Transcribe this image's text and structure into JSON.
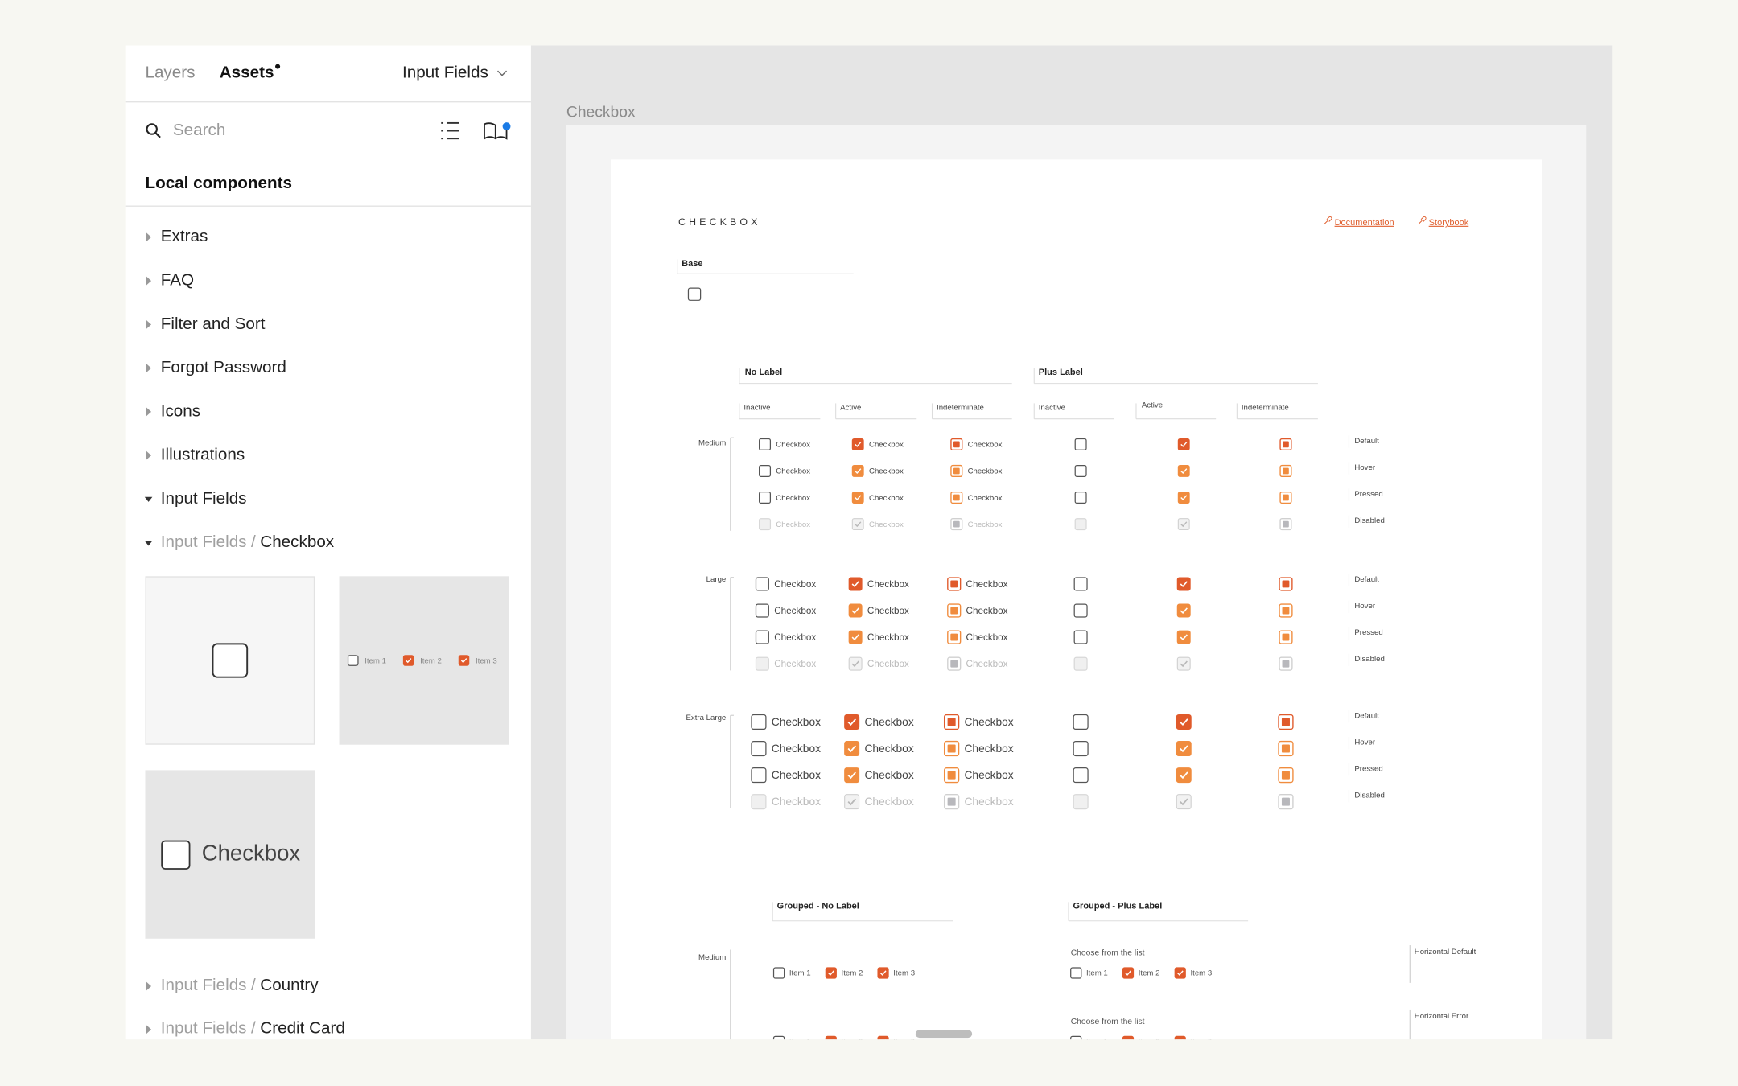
{
  "panel": {
    "tabs": [
      "Layers",
      "Assets"
    ],
    "dropdown": "Input Fields",
    "search": "Search",
    "section": "Local components",
    "tree": [
      {
        "label": "Extras"
      },
      {
        "label": "FAQ"
      },
      {
        "label": "Filter and Sort"
      },
      {
        "label": "Forgot Password"
      },
      {
        "label": "Icons"
      },
      {
        "label": "Illustrations"
      },
      {
        "label": "Input Fields",
        "expanded": true
      }
    ],
    "separator": "/",
    "subfolders": [
      {
        "parent": "Input Fields",
        "name": "Checkbox",
        "expanded": true
      },
      {
        "parent": "Input Fields",
        "name": "Country"
      },
      {
        "parent": "Input Fields",
        "name": "Credit Card"
      }
    ]
  },
  "canvas": {
    "frame_label": "Checkbox",
    "heading": "CHECKBOX",
    "links": [
      "Documentation",
      "Storybook"
    ],
    "base": "Base",
    "groups": [
      "No Label",
      "Plus Label"
    ],
    "states": [
      "Inactive",
      "Active",
      "Indeterminate"
    ],
    "sizes": [
      "Medium",
      "Large",
      "Extra Large"
    ],
    "variants": [
      "Default",
      "Hover",
      "Pressed",
      "Disabled"
    ],
    "checkbox_label": "Checkbox",
    "grouped": {
      "titles": [
        "Grouped - No Label",
        "Grouped - Plus Label"
      ],
      "size": "Medium",
      "prompt": "Choose from the list",
      "items": [
        {
          "label": "Item 1",
          "checked": false
        },
        {
          "label": "Item 2",
          "checked": true
        },
        {
          "label": "Item 3",
          "checked": true
        }
      ],
      "variants": [
        "Horizontal Default",
        "Horizontal Error"
      ]
    }
  }
}
